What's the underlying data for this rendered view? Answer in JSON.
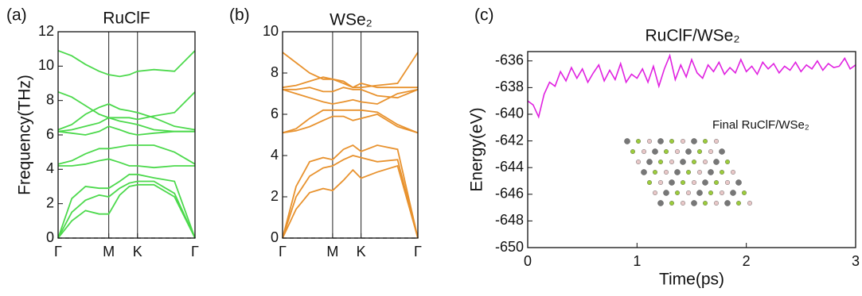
{
  "chart_data": [
    {
      "type": "line",
      "panel_label": "(a)",
      "title": "RuClF",
      "ylabel": "Frequency(THz)",
      "color": "#4cd94c",
      "x": [
        0,
        0.1,
        0.2,
        0.3,
        0.37,
        0.45,
        0.52,
        0.58,
        0.7,
        0.85,
        1
      ],
      "xlim": [
        0,
        1
      ],
      "xticks": [
        {
          "value": 0,
          "label": "Γ"
        },
        {
          "value": 0.37,
          "label": "M"
        },
        {
          "value": 0.58,
          "label": "K"
        },
        {
          "value": 1,
          "label": "Γ"
        }
      ],
      "xgrid": true,
      "ylim": [
        0,
        12
      ],
      "yticks": [
        0,
        2,
        4,
        6,
        8,
        10,
        12
      ],
      "reference_line": 0,
      "series": [
        {
          "values": [
            10.9,
            10.6,
            10.1,
            9.7,
            9.5,
            9.4,
            9.5,
            9.7,
            9.8,
            9.7,
            10.9
          ]
        },
        {
          "values": [
            8.5,
            8.2,
            7.7,
            7.2,
            7.0,
            7.0,
            7.0,
            6.9,
            7.1,
            7.3,
            8.5
          ]
        },
        {
          "values": [
            6.3,
            6.6,
            7.2,
            7.6,
            7.8,
            7.5,
            7.4,
            7.3,
            7.0,
            6.5,
            6.3
          ]
        },
        {
          "values": [
            6.2,
            6.3,
            6.5,
            6.7,
            7.0,
            6.8,
            6.7,
            6.6,
            6.3,
            6.2,
            6.2
          ]
        },
        {
          "values": [
            6.2,
            6.1,
            6.0,
            6.2,
            6.5,
            6.3,
            6.1,
            6.0,
            6.1,
            6.2,
            6.2
          ]
        },
        {
          "values": [
            4.3,
            4.5,
            4.9,
            5.2,
            5.2,
            5.3,
            5.4,
            5.4,
            5.4,
            5.0,
            4.3
          ]
        },
        {
          "values": [
            4.2,
            4.2,
            4.3,
            4.5,
            4.6,
            4.4,
            4.2,
            4.2,
            4.1,
            4.2,
            4.2
          ]
        },
        {
          "values": [
            0,
            2.3,
            3.0,
            2.9,
            2.9,
            3.3,
            3.7,
            3.7,
            3.5,
            3.3,
            0
          ]
        },
        {
          "values": [
            0,
            1.5,
            2.2,
            2.5,
            2.4,
            2.9,
            3.2,
            3.3,
            3.3,
            2.6,
            0
          ]
        },
        {
          "values": [
            0,
            1.0,
            1.6,
            1.4,
            1.4,
            2.5,
            3.0,
            3.1,
            3.1,
            2.4,
            0
          ]
        }
      ]
    },
    {
      "type": "line",
      "panel_label": "(b)",
      "title": "WSe₂",
      "color": "#e8922e",
      "x": [
        0,
        0.1,
        0.2,
        0.3,
        0.37,
        0.45,
        0.52,
        0.58,
        0.7,
        0.85,
        1
      ],
      "xlim": [
        0,
        1
      ],
      "xticks": [
        {
          "value": 0,
          "label": "Γ"
        },
        {
          "value": 0.37,
          "label": "M"
        },
        {
          "value": 0.58,
          "label": "K"
        },
        {
          "value": 1,
          "label": "Γ"
        }
      ],
      "xgrid": true,
      "ylim": [
        0,
        10
      ],
      "yticks": [
        0,
        2,
        4,
        6,
        8,
        10
      ],
      "reference_line": 0,
      "series": [
        {
          "values": [
            9.0,
            8.5,
            8.0,
            7.7,
            7.7,
            7.5,
            7.3,
            7.3,
            7.4,
            7.5,
            9.0
          ]
        },
        {
          "values": [
            7.3,
            7.4,
            7.6,
            7.8,
            7.7,
            7.6,
            7.3,
            7.5,
            7.3,
            7.3,
            7.3
          ]
        },
        {
          "values": [
            7.2,
            7.2,
            7.3,
            7.1,
            7.1,
            7.3,
            7.2,
            7.2,
            6.9,
            6.8,
            7.2
          ]
        },
        {
          "values": [
            7.2,
            7.0,
            6.8,
            6.6,
            6.5,
            6.6,
            6.7,
            6.6,
            6.5,
            7.0,
            7.2
          ]
        },
        {
          "values": [
            5.1,
            5.3,
            5.8,
            6.2,
            6.2,
            6.2,
            6.2,
            6.2,
            6.1,
            5.5,
            5.1
          ]
        },
        {
          "values": [
            5.1,
            5.2,
            5.4,
            5.7,
            5.9,
            5.9,
            5.7,
            5.8,
            6.0,
            5.4,
            5.1
          ]
        },
        {
          "values": [
            0,
            2.5,
            3.7,
            3.9,
            3.8,
            4.3,
            4.5,
            4.2,
            4.5,
            4.3,
            0
          ]
        },
        {
          "values": [
            0,
            2.0,
            3.0,
            3.4,
            3.5,
            3.8,
            4.0,
            3.9,
            3.7,
            3.8,
            0
          ]
        },
        {
          "values": [
            0,
            1.4,
            2.2,
            2.4,
            2.3,
            2.8,
            3.3,
            2.9,
            3.2,
            3.5,
            0
          ]
        }
      ]
    },
    {
      "type": "line",
      "panel_label": "(c)",
      "title": "RuClF/WSe₂",
      "ylabel": "Energy(eV)",
      "xlabel": "Time(ps)",
      "color": "#e020e0",
      "annotation": "Final RuClF/WSe₂",
      "x": [
        0,
        0.05,
        0.1,
        0.15,
        0.2,
        0.25,
        0.3,
        0.35,
        0.4,
        0.45,
        0.5,
        0.55,
        0.6,
        0.65,
        0.7,
        0.75,
        0.8,
        0.85,
        0.9,
        0.95,
        1.0,
        1.05,
        1.1,
        1.15,
        1.2,
        1.25,
        1.3,
        1.35,
        1.4,
        1.45,
        1.5,
        1.55,
        1.6,
        1.65,
        1.7,
        1.75,
        1.8,
        1.85,
        1.9,
        1.95,
        2.0,
        2.05,
        2.1,
        2.15,
        2.2,
        2.25,
        2.3,
        2.35,
        2.4,
        2.45,
        2.5,
        2.55,
        2.6,
        2.65,
        2.7,
        2.75,
        2.8,
        2.85,
        2.9,
        2.95,
        3.0
      ],
      "xlim": [
        0,
        3
      ],
      "xticks": [
        0,
        1,
        2,
        3
      ],
      "xgrid": false,
      "ylim": [
        -650,
        -635.3
      ],
      "yticks": [
        -650,
        -648,
        -646,
        -644,
        -642,
        -640,
        -638,
        -636
      ],
      "series": [
        {
          "values": [
            -639.0,
            -639.3,
            -640.2,
            -638.5,
            -637.6,
            -637.9,
            -636.8,
            -637.5,
            -636.5,
            -637.3,
            -636.6,
            -637.6,
            -636.9,
            -636.3,
            -637.5,
            -636.7,
            -637.4,
            -636.2,
            -637.6,
            -637.0,
            -637.3,
            -636.6,
            -637.6,
            -636.4,
            -637.9,
            -636.6,
            -635.6,
            -637.4,
            -636.3,
            -637.2,
            -635.9,
            -636.9,
            -637.3,
            -636.3,
            -636.8,
            -636.1,
            -637.0,
            -636.5,
            -636.9,
            -635.9,
            -636.8,
            -636.4,
            -637.0,
            -636.1,
            -636.6,
            -636.2,
            -636.9,
            -636.4,
            -636.7,
            -636.1,
            -636.8,
            -636.3,
            -636.6,
            -636.0,
            -636.7,
            -636.2,
            -636.5,
            -636.4,
            -635.8,
            -636.6,
            -636.3
          ]
        }
      ]
    }
  ]
}
